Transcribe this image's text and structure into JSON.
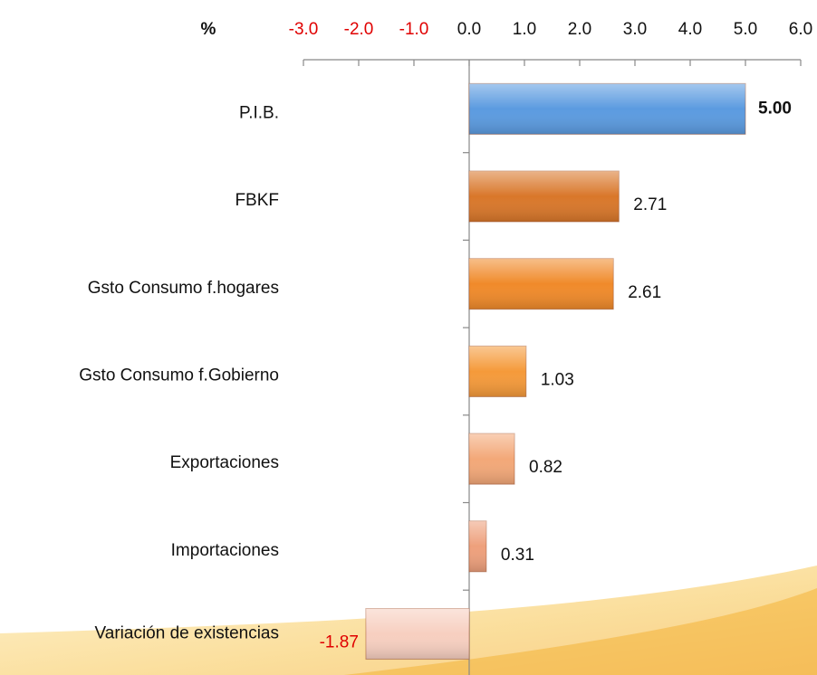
{
  "chart_data": {
    "type": "bar",
    "orientation": "horizontal",
    "xlabel": "%",
    "categories": [
      "P.I.B.",
      "FBKF",
      "Gsto Consumo f.hogares",
      "Gsto Consumo f.Gobierno",
      "Exportaciones",
      "Importaciones",
      "Variación de existencias"
    ],
    "values": [
      5.0,
      2.71,
      2.61,
      1.03,
      0.82,
      0.31,
      -1.87
    ],
    "value_labels": [
      "5.00",
      "2.71",
      "2.61",
      "1.03",
      "0.82",
      "0.31",
      "-1.87"
    ],
    "colors": [
      "#5b9be0",
      "#d9772a",
      "#f08a2a",
      "#f59a3a",
      "#f3a878",
      "#eea07c",
      "#f7cfc0"
    ],
    "xlim": [
      -3,
      6
    ],
    "xticks": [
      {
        "value": -3,
        "label": "-3.0"
      },
      {
        "value": -2,
        "label": "-2.0"
      },
      {
        "value": -1,
        "label": "-1.0"
      },
      {
        "value": 0,
        "label": "0.0"
      },
      {
        "value": 1,
        "label": "1.0"
      },
      {
        "value": 2,
        "label": "2.0"
      },
      {
        "value": 3,
        "label": "3.0"
      },
      {
        "value": 4,
        "label": "4.0"
      },
      {
        "value": 5,
        "label": "5.0"
      },
      {
        "value": 6,
        "label": "6.0"
      }
    ]
  }
}
